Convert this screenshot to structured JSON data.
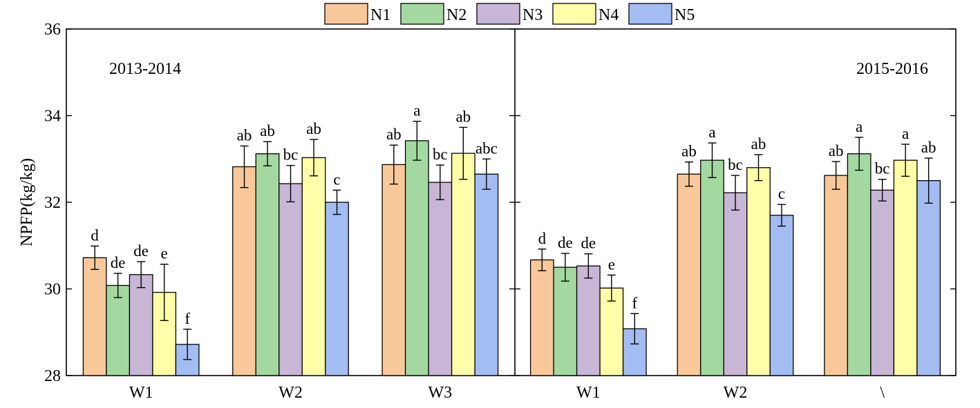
{
  "chart_data": {
    "type": "bar",
    "ylabel": "NPFP(kg/kg)",
    "ylim": [
      28,
      36
    ],
    "yticks": [
      28,
      30,
      32,
      34,
      36
    ],
    "legend_position": "top-center",
    "series_names": [
      "N1",
      "N2",
      "N3",
      "N4",
      "N5"
    ],
    "colors": {
      "N1": "#f8c89a",
      "N2": "#a3d9a0",
      "N3": "#c8b6d6",
      "N4": "#fefea8",
      "N5": "#a3bcf2"
    },
    "panels": [
      {
        "label": "2013-2014",
        "label_position": "top-left",
        "categories": [
          "W1",
          "W2",
          "W3"
        ],
        "series": [
          {
            "name": "N1",
            "values": [
              30.72,
              32.82,
              32.87
            ],
            "errors": [
              0.27,
              0.48,
              0.45
            ],
            "letters": [
              "d",
              "ab",
              "ab"
            ]
          },
          {
            "name": "N2",
            "values": [
              30.08,
              33.12,
              33.42
            ],
            "errors": [
              0.28,
              0.28,
              0.45
            ],
            "letters": [
              "de",
              "ab",
              "a"
            ]
          },
          {
            "name": "N3",
            "values": [
              30.33,
              32.43,
              32.46
            ],
            "errors": [
              0.3,
              0.42,
              0.4
            ],
            "letters": [
              "de",
              "bc",
              "bc"
            ]
          },
          {
            "name": "N4",
            "values": [
              29.92,
              33.03,
              33.13
            ],
            "errors": [
              0.65,
              0.42,
              0.6
            ],
            "letters": [
              "e",
              "ab",
              "ab"
            ]
          },
          {
            "name": "N5",
            "values": [
              28.72,
              32.0,
              32.65
            ],
            "errors": [
              0.35,
              0.28,
              0.35
            ],
            "letters": [
              "f",
              "c",
              "abc"
            ]
          }
        ]
      },
      {
        "label": "2015-2016",
        "label_position": "top-right",
        "categories": [
          "W1",
          "W2",
          "\\"
        ],
        "series": [
          {
            "name": "N1",
            "values": [
              30.67,
              32.65,
              32.62
            ],
            "errors": [
              0.25,
              0.28,
              0.32
            ],
            "letters": [
              "d",
              "ab",
              "ab"
            ]
          },
          {
            "name": "N2",
            "values": [
              30.5,
              32.97,
              33.12
            ],
            "errors": [
              0.32,
              0.4,
              0.38
            ],
            "letters": [
              "de",
              "a",
              "a"
            ]
          },
          {
            "name": "N3",
            "values": [
              30.53,
              32.22,
              32.28
            ],
            "errors": [
              0.28,
              0.4,
              0.25
            ],
            "letters": [
              "de",
              "bc",
              "bc"
            ]
          },
          {
            "name": "N4",
            "values": [
              30.02,
              32.8,
              32.97
            ],
            "errors": [
              0.3,
              0.3,
              0.37
            ],
            "letters": [
              "e",
              "ab",
              "a"
            ]
          },
          {
            "name": "N5",
            "values": [
              29.08,
              31.7,
              32.5
            ],
            "errors": [
              0.35,
              0.25,
              0.52
            ],
            "letters": [
              "f",
              "c",
              "ab"
            ]
          }
        ]
      }
    ]
  }
}
